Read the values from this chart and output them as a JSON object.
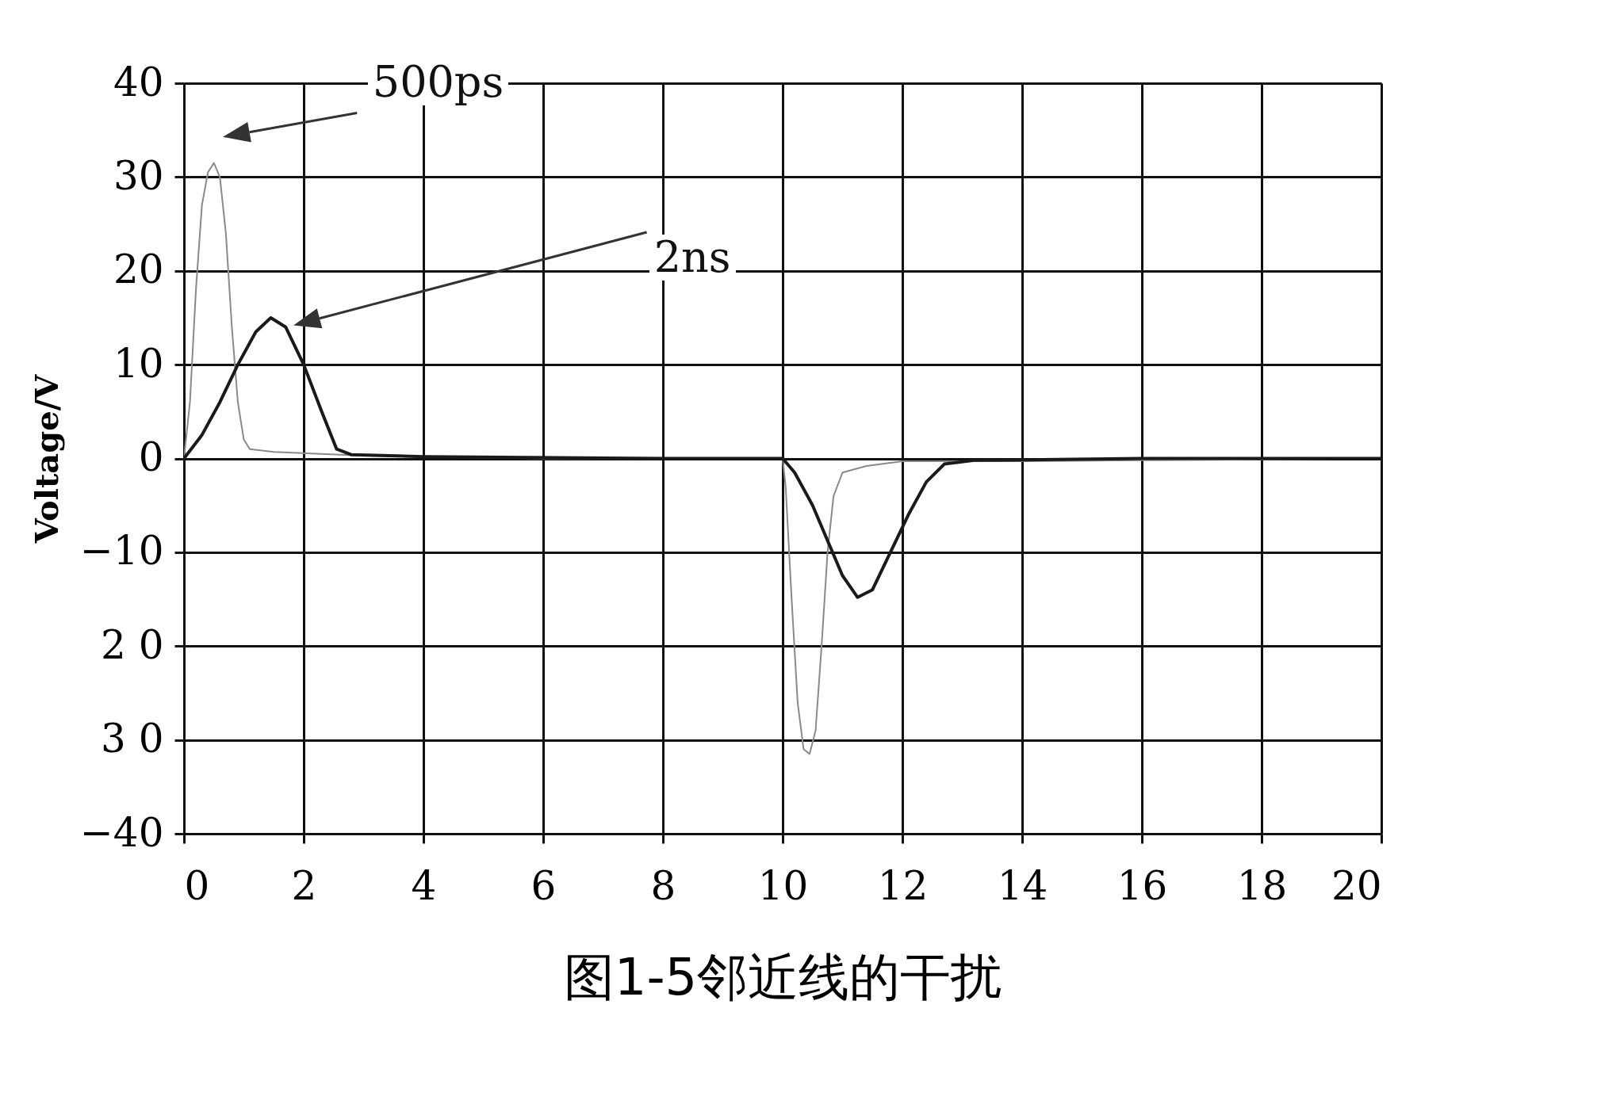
{
  "chart_data": {
    "type": "line",
    "title": "图1-5邻近线的干扰",
    "ylabel": "Voltage/V",
    "xlim": [
      0,
      20
    ],
    "xticks": [
      0,
      2,
      4,
      6,
      8,
      10,
      12,
      14,
      16,
      18,
      20
    ],
    "ylim": [
      -40,
      40
    ],
    "yticks": [
      -40,
      {
        "value": -30,
        "label": "3 0"
      },
      {
        "value": -20,
        "label": "2 0"
      },
      -10,
      0,
      10,
      20,
      30,
      40
    ],
    "grid": true,
    "annotations": [
      "500ps",
      "2ns"
    ],
    "series": [
      {
        "color": "#8a8a8a",
        "x": [
          0,
          0.1,
          0.2,
          0.3,
          0.4,
          0.5,
          0.6,
          0.7,
          0.8,
          0.9,
          1.0,
          1.1,
          1.5,
          3,
          6,
          10,
          10.05,
          10.15,
          10.25,
          10.35,
          10.45,
          10.55,
          10.65,
          10.75,
          10.85,
          11,
          11.4,
          12,
          14,
          16,
          20
        ],
        "values": [
          0,
          6,
          18,
          27,
          30.5,
          31.5,
          30,
          24,
          14,
          6,
          2,
          1,
          0.7,
          0.3,
          0,
          0,
          -3,
          -15,
          -26,
          -31,
          -31.5,
          -29,
          -20,
          -10,
          -4,
          -1.5,
          -0.8,
          -0.3,
          -0.3,
          -0.2,
          0
        ]
      },
      {
        "color": "#1a1a1a",
        "x": [
          0,
          0.3,
          0.6,
          0.9,
          1.2,
          1.45,
          1.7,
          2.0,
          2.3,
          2.55,
          2.8,
          4,
          8,
          10,
          10.2,
          10.5,
          10.8,
          11.0,
          11.25,
          11.5,
          11.8,
          12.1,
          12.4,
          12.7,
          13.2,
          16,
          20
        ],
        "values": [
          0,
          2.5,
          6,
          10,
          13.5,
          15,
          14,
          10,
          5,
          1,
          0.4,
          0.2,
          0,
          0,
          -1.5,
          -5,
          -9.5,
          -12.5,
          -14.8,
          -14,
          -10,
          -6,
          -2.5,
          -0.6,
          -0.2,
          0,
          0
        ]
      }
    ]
  }
}
